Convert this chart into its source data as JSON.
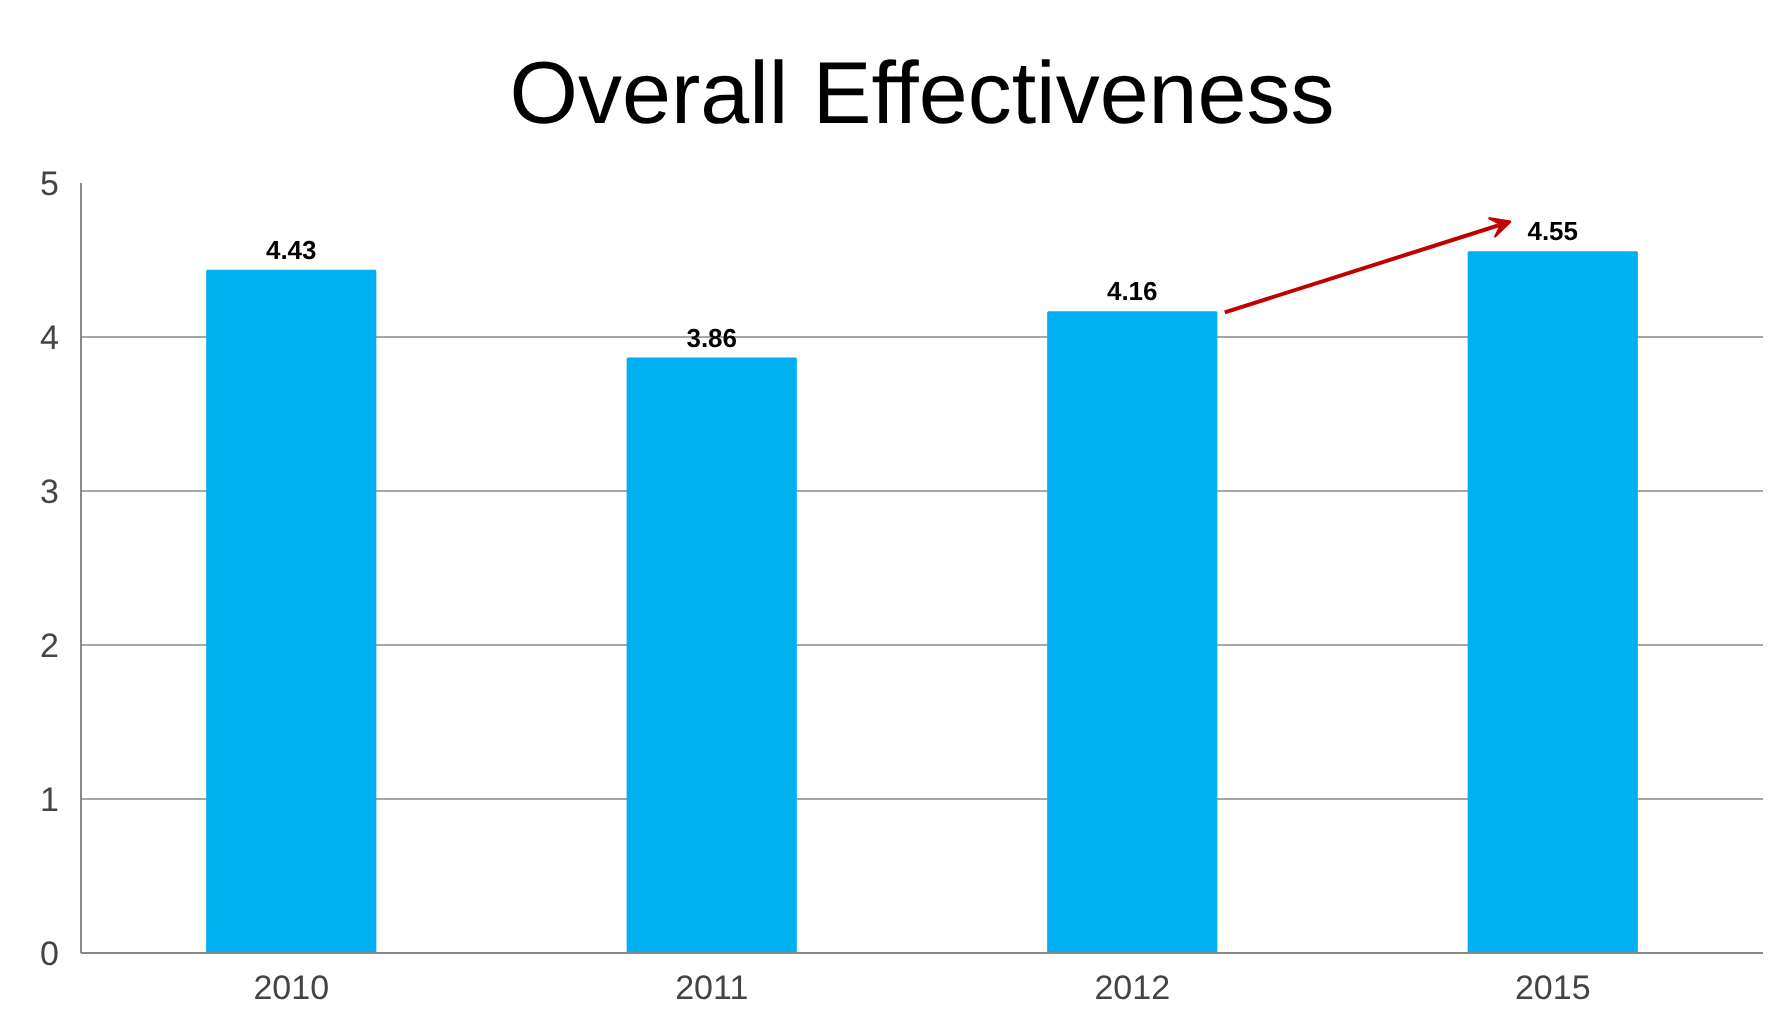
{
  "chart_data": {
    "type": "bar",
    "title": "Overall Effectiveness",
    "categories": [
      "2010",
      "2011",
      "2012",
      "2015"
    ],
    "values": [
      4.43,
      3.86,
      4.16,
      4.55
    ],
    "color": "#00b0f0",
    "data_labels": true,
    "ylim": [
      0,
      5
    ],
    "yticks": [
      0,
      1,
      2,
      3,
      4,
      5
    ],
    "grid": "y"
  }
}
